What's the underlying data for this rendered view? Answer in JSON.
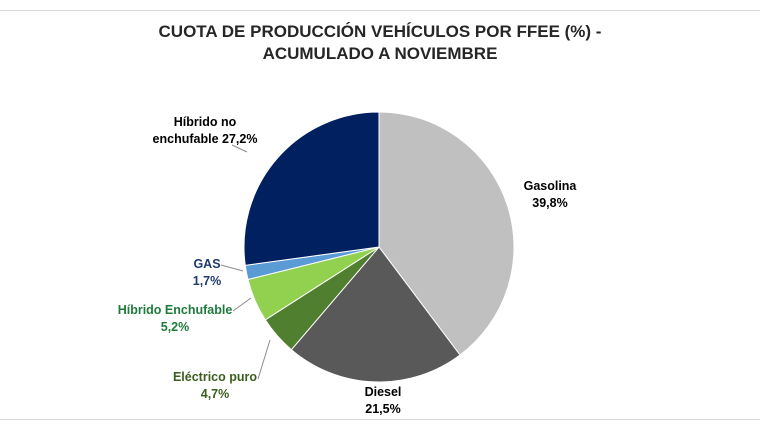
{
  "chart_data": {
    "type": "pie",
    "title_lines": [
      "CUOTA DE PRODUCCIÓN VEHÍCULOS POR FFEE (%)  -",
      "ACUMULADO A NOVIEMBRE"
    ],
    "start_angle": "12 o'clock, clockwise",
    "slices": [
      {
        "value": 39.8,
        "label_lines": [
          "Gasolina",
          "39,8%"
        ],
        "color": "#c0c0c0",
        "label_color": "#000000"
      },
      {
        "value": 21.5,
        "label_lines": [
          "Diesel",
          "21,5%"
        ],
        "color": "#595959",
        "label_color": "#000000"
      },
      {
        "value": 4.7,
        "label_lines": [
          "Eléctrico puro",
          "4,7%"
        ],
        "color": "#4f7f2f",
        "label_color": "#3b5e1f"
      },
      {
        "value": 5.2,
        "label_lines": [
          "Híbrido Enchufable",
          "5,2%"
        ],
        "color": "#92d050",
        "label_color": "#1e7b3c"
      },
      {
        "value": 1.7,
        "label_lines": [
          "GAS",
          "1,7%"
        ],
        "color": "#5b9bd5",
        "label_color": "#1f3a6e"
      },
      {
        "value": 27.2,
        "label_lines": [
          "Híbrido no",
          "enchufable 27,2%"
        ],
        "color": "#002060",
        "label_color": "#000000"
      }
    ]
  }
}
